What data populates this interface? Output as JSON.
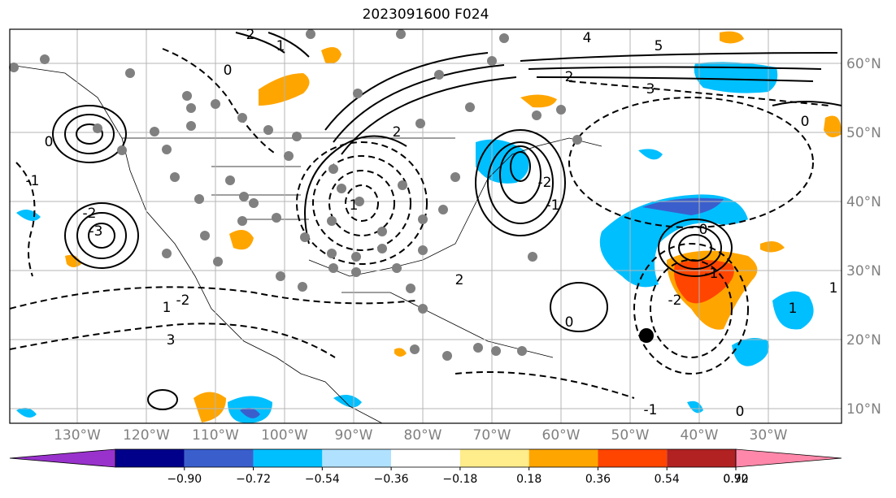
{
  "title": "2023091600 F024",
  "map": {
    "lon_labels": [
      "130°W",
      "120°W",
      "110°W",
      "100°W",
      "90°W",
      "80°W",
      "70°W",
      "60°W",
      "50°W",
      "40°W",
      "30°W"
    ],
    "lat_labels": [
      "60°N",
      "50°N",
      "40°N",
      "30°N",
      "20°N",
      "10°N"
    ],
    "contour_labels": [
      "2",
      "1",
      "0",
      "4",
      "5",
      "3",
      "2",
      "-1",
      "-2",
      "-3",
      "0",
      "1",
      "2",
      "-1",
      "0",
      "-1",
      "-2",
      "1",
      "3",
      "-2",
      "1",
      "2",
      "-2",
      "0",
      "-1",
      "0",
      "1",
      "0"
    ],
    "marker": "storm-center-marker"
  },
  "colorbar": {
    "ticks": [
      "−0.90",
      "−0.72",
      "−0.54",
      "−0.36",
      "−0.18",
      "0.18",
      "0.36",
      "0.54",
      "0.72",
      "0.90"
    ],
    "colors": [
      "#9932cc",
      "#00008b",
      "#3a5fcd",
      "#00bfff",
      "#b0e2ff",
      "#ffffff",
      "#ffec8b",
      "#ffa500",
      "#ff4500",
      "#b22222",
      "#ff88aa"
    ]
  }
}
